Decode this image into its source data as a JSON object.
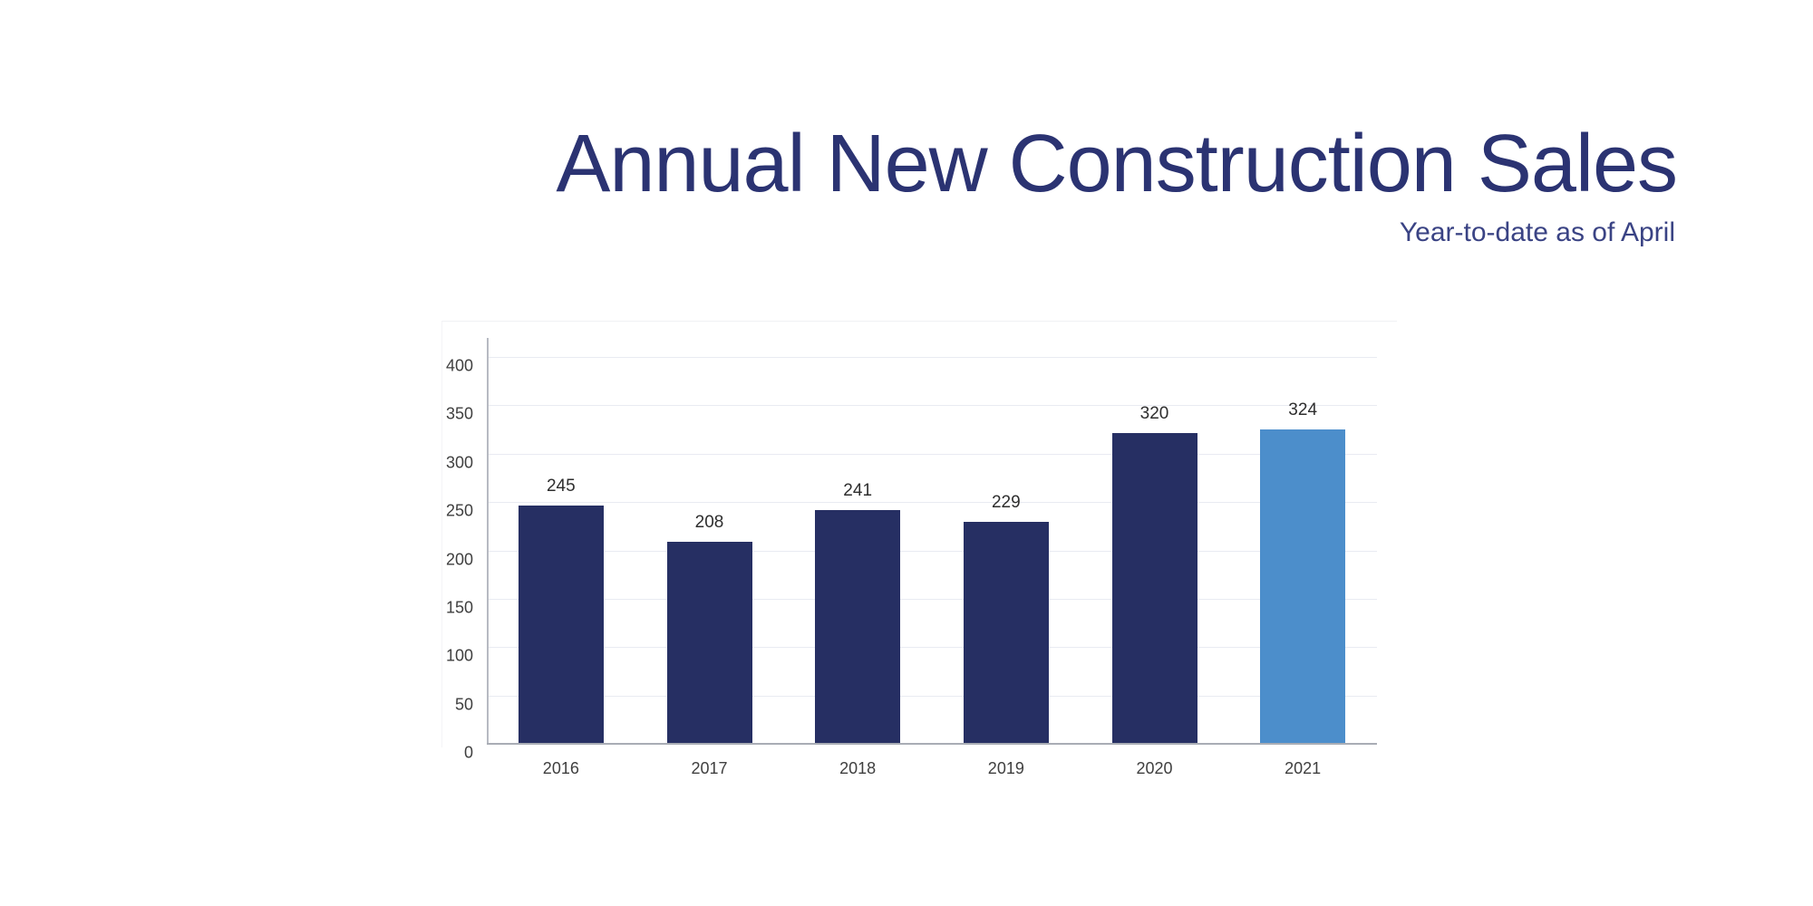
{
  "page": {
    "background_color": "#ffffff"
  },
  "header": {
    "title": "Annual New Construction Sales",
    "subtitle": "Year-to-date as of April",
    "title_color": "#2b3372",
    "subtitle_color": "#3a4384"
  },
  "chart_data": {
    "type": "bar",
    "title": "Annual New Construction Sales",
    "subtitle": "Year-to-date as of April",
    "categories": [
      "2016",
      "2017",
      "2018",
      "2019",
      "2020",
      "2021"
    ],
    "values": [
      245,
      208,
      241,
      229,
      320,
      324
    ],
    "data_labels": [
      "245",
      "208",
      "241",
      "229",
      "320",
      "324"
    ],
    "bar_colors": [
      "#262f63",
      "#262f63",
      "#262f63",
      "#262f63",
      "#262f63",
      "#4c8ecb"
    ],
    "highlight_index": 5,
    "xlabel": "",
    "ylabel": "",
    "ylim": [
      0,
      400
    ],
    "yticks": [
      0,
      50,
      100,
      150,
      200,
      250,
      300,
      350,
      400
    ],
    "grid": true,
    "legend_position": "none",
    "colors": {
      "bar_default": "#262f63",
      "bar_highlight": "#4c8ecb",
      "gridline": "#e9ebf2",
      "axis_line": "#b7bac2",
      "tick_text": "#3f3f3f",
      "value_label_text": "#2e2e2e"
    }
  }
}
